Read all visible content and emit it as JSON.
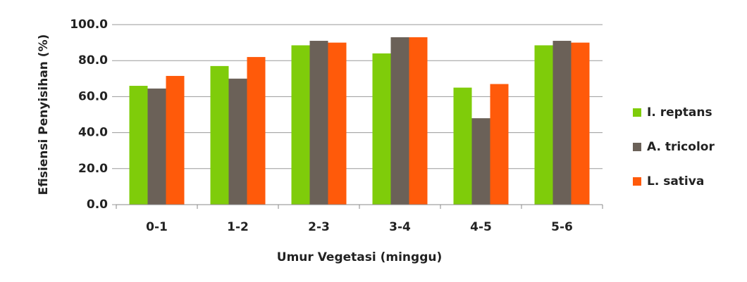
{
  "chart_data": {
    "type": "bar",
    "x_label": "Umur Vegetasi (minggu)",
    "y_label": "Efisiensi Penyisihan (%)",
    "categories": [
      "0-1",
      "1-2",
      "2-3",
      "3-4",
      "4-5",
      "5-6"
    ],
    "series": [
      {
        "name": "I. reptans",
        "color": "#7fcc0a",
        "values": [
          66,
          77,
          88.5,
          84,
          65,
          88.5
        ]
      },
      {
        "name": "A. tricolor",
        "color": "#6b6158",
        "values": [
          64.5,
          70,
          91,
          93,
          48,
          91
        ]
      },
      {
        "name": "L. sativa",
        "color": "#ff5a0a",
        "values": [
          71.5,
          82,
          90,
          93,
          67,
          90
        ]
      }
    ],
    "ylim": [
      0,
      100
    ],
    "yticks": [
      {
        "value": 0,
        "label": "0.0"
      },
      {
        "value": 20,
        "label": "20.0"
      },
      {
        "value": 40,
        "label": "40.0"
      },
      {
        "value": 60,
        "label": "60.0"
      },
      {
        "value": 80,
        "label": "80.0"
      },
      {
        "value": 100,
        "label": "100.0"
      }
    ],
    "grid": true,
    "legend": "right"
  }
}
